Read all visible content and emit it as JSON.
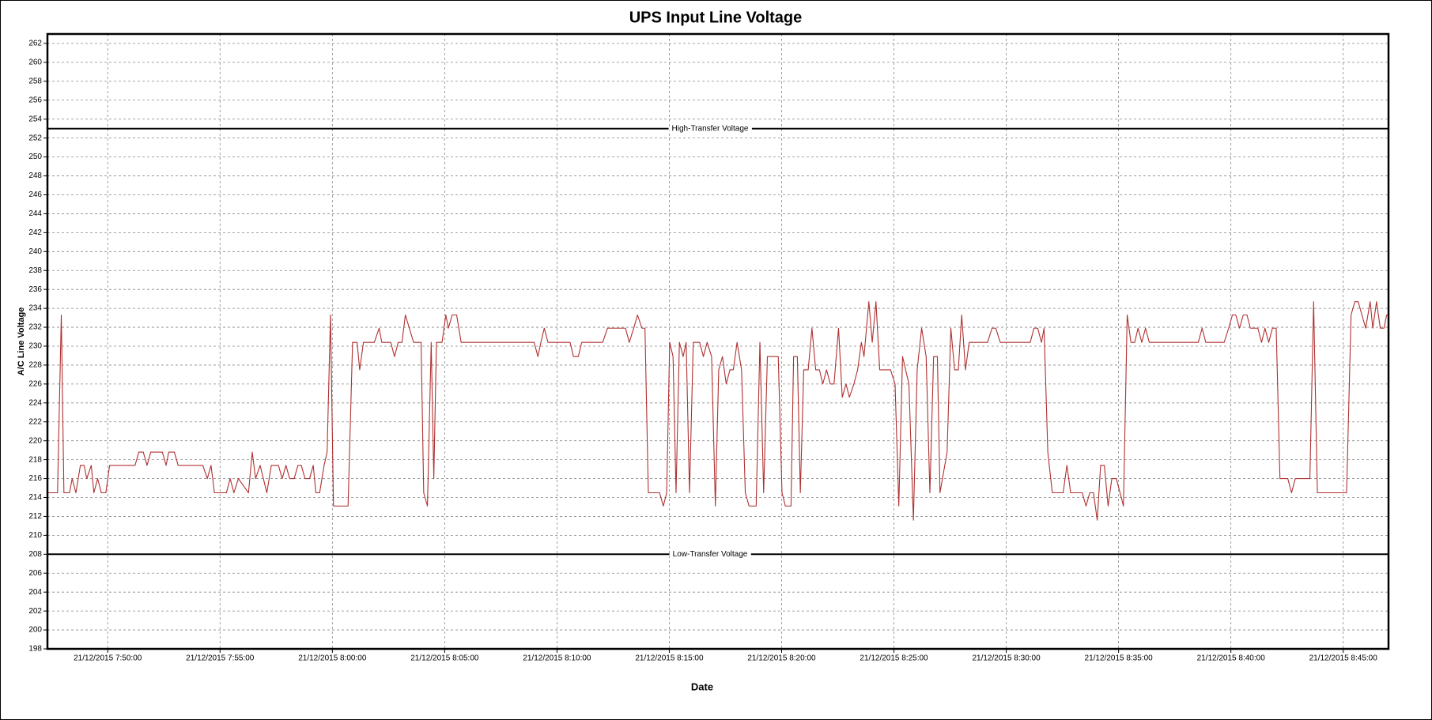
{
  "chart_data": {
    "type": "line",
    "title": "UPS Input Line Voltage",
    "xlabel": "Date",
    "ylabel": "A/C Line Voltage",
    "color": "#b03030",
    "grid": true,
    "ylim": [
      198,
      263
    ],
    "yticks": [
      198,
      200,
      202,
      204,
      206,
      208,
      210,
      212,
      214,
      216,
      218,
      220,
      222,
      224,
      226,
      228,
      230,
      232,
      234,
      236,
      238,
      240,
      242,
      244,
      246,
      248,
      250,
      252,
      254,
      256,
      258,
      260,
      262
    ],
    "xlim": [
      "21/12/2015 7:47:19",
      "21/12/2015 8:47:01"
    ],
    "xticks": [
      "21/12/2015 7:50:00",
      "21/12/2015 7:55:00",
      "21/12/2015 8:00:00",
      "21/12/2015 8:05:00",
      "21/12/2015 8:10:00",
      "21/12/2015 8:15:00",
      "21/12/2015 8:20:00",
      "21/12/2015 8:25:00",
      "21/12/2015 8:30:00",
      "21/12/2015 8:35:00",
      "21/12/2015 8:40:00",
      "21/12/2015 8:45:00"
    ],
    "reference_lines": [
      {
        "value": 253,
        "label": "High-Transfer Voltage"
      },
      {
        "value": 208,
        "label": "Low-Transfer Voltage"
      }
    ],
    "x": [
      "21/12/2015 7:47:19",
      "21/12/2015 7:47:46",
      "21/12/2015 7:47:56",
      "21/12/2015 7:48:03",
      "21/12/2015 7:48:18",
      "21/12/2015 7:48:25",
      "21/12/2015 7:48:35",
      "21/12/2015 7:48:47",
      "21/12/2015 7:48:57",
      "21/12/2015 7:49:04",
      "21/12/2015 7:49:16",
      "21/12/2015 7:49:23",
      "21/12/2015 7:49:33",
      "21/12/2015 7:49:43",
      "21/12/2015 7:49:55",
      "21/12/2015 7:50:05",
      "21/12/2015 7:51:13",
      "21/12/2015 7:51:23",
      "21/12/2015 7:51:35",
      "21/12/2015 7:51:45",
      "21/12/2015 7:51:55",
      "21/12/2015 7:52:26",
      "21/12/2015 7:52:36",
      "21/12/2015 7:52:43",
      "21/12/2015 7:52:58",
      "21/12/2015 7:53:08",
      "21/12/2015 7:54:14",
      "21/12/2015 7:54:26",
      "21/12/2015 7:54:36",
      "21/12/2015 7:54:45",
      "21/12/2015 7:55:17",
      "21/12/2015 7:55:27",
      "21/12/2015 7:55:37",
      "21/12/2015 7:55:49",
      "21/12/2015 7:56:16",
      "21/12/2015 7:56:26",
      "21/12/2015 7:56:35",
      "21/12/2015 7:56:47",
      "21/12/2015 7:57:05",
      "21/12/2015 7:57:17",
      "21/12/2015 7:57:36",
      "21/12/2015 7:57:46",
      "21/12/2015 7:57:56",
      "21/12/2015 7:58:06",
      "21/12/2015 7:58:18",
      "21/12/2015 7:58:28",
      "21/12/2015 7:58:37",
      "21/12/2015 7:58:47",
      "21/12/2015 7:58:59",
      "21/12/2015 7:59:09",
      "21/12/2015 7:59:16",
      "21/12/2015 7:59:26",
      "21/12/2015 7:59:38",
      "21/12/2015 7:59:46",
      "21/12/2015 7:59:55",
      "21/12/2015 8:00:03",
      "21/12/2015 8:00:42",
      "21/12/2015 8:00:54",
      "21/12/2015 8:01:06",
      "21/12/2015 8:01:13",
      "21/12/2015 8:01:23",
      "21/12/2015 8:01:52",
      "21/12/2015 8:02:05",
      "21/12/2015 8:02:12",
      "21/12/2015 8:02:36",
      "21/12/2015 8:02:46",
      "21/12/2015 8:02:56",
      "21/12/2015 8:03:06",
      "21/12/2015 8:03:15",
      "21/12/2015 8:03:37",
      "21/12/2015 8:03:57",
      "21/12/2015 8:04:04",
      "21/12/2015 8:04:14",
      "21/12/2015 8:04:24",
      "21/12/2015 8:04:31",
      "21/12/2015 8:04:38",
      "21/12/2015 8:04:53",
      "21/12/2015 8:05:03",
      "21/12/2015 8:05:10",
      "21/12/2015 8:05:20",
      "21/12/2015 8:05:32",
      "21/12/2015 8:05:44",
      "21/12/2015 8:08:59",
      "21/12/2015 8:09:09",
      "21/12/2015 8:09:17",
      "21/12/2015 8:09:26",
      "21/12/2015 8:09:36",
      "21/12/2015 8:10:35",
      "21/12/2015 8:10:44",
      "21/12/2015 8:10:57",
      "21/12/2015 8:11:06",
      "21/12/2015 8:12:02",
      "21/12/2015 8:12:15",
      "21/12/2015 8:13:03",
      "21/12/2015 8:13:13",
      "21/12/2015 8:13:25",
      "21/12/2015 8:13:35",
      "21/12/2015 8:13:47",
      "21/12/2015 8:13:55",
      "21/12/2015 8:14:04",
      "21/12/2015 8:14:34",
      "21/12/2015 8:14:44",
      "21/12/2015 8:14:53",
      "21/12/2015 8:15:01",
      "21/12/2015 8:15:10",
      "21/12/2015 8:15:18",
      "21/12/2015 8:15:27",
      "21/12/2015 8:15:37",
      "21/12/2015 8:15:45",
      "21/12/2015 8:15:54",
      "21/12/2015 8:16:04",
      "21/12/2015 8:16:21",
      "21/12/2015 8:16:31",
      "21/12/2015 8:16:41",
      "21/12/2015 8:16:53",
      "21/12/2015 8:17:03",
      "21/12/2015 8:17:12",
      "21/12/2015 8:17:22",
      "21/12/2015 8:17:32",
      "21/12/2015 8:17:42",
      "21/12/2015 8:17:51",
      "21/12/2015 8:18:01",
      "21/12/2015 8:18:13",
      "21/12/2015 8:18:23",
      "21/12/2015 8:18:33",
      "21/12/2015 8:18:52",
      "21/12/2015 8:19:02",
      "21/12/2015 8:19:12",
      "21/12/2015 8:19:22",
      "21/12/2015 8:19:51",
      "21/12/2015 8:20:01",
      "21/12/2015 8:20:10",
      "21/12/2015 8:20:25",
      "21/12/2015 8:20:32",
      "21/12/2015 8:20:42",
      "21/12/2015 8:20:50",
      "21/12/2015 8:20:59",
      "21/12/2015 8:21:11",
      "21/12/2015 8:21:21",
      "21/12/2015 8:21:31",
      "21/12/2015 8:21:41",
      "21/12/2015 8:21:50",
      "21/12/2015 8:22:00",
      "21/12/2015 8:22:10",
      "21/12/2015 8:22:20",
      "21/12/2015 8:22:32",
      "21/12/2015 8:22:42",
      "21/12/2015 8:22:52",
      "21/12/2015 8:23:01",
      "21/12/2015 8:23:13",
      "21/12/2015 8:23:23",
      "21/12/2015 8:23:33",
      "21/12/2015 8:23:40",
      "21/12/2015 8:23:53",
      "21/12/2015 8:24:02",
      "21/12/2015 8:24:12",
      "21/12/2015 8:24:22",
      "21/12/2015 8:24:51",
      "21/12/2015 8:25:03",
      "21/12/2015 8:25:13",
      "21/12/2015 8:25:23",
      "21/12/2015 8:25:40",
      "21/12/2015 8:25:52",
      "21/12/2015 8:26:02",
      "21/12/2015 8:26:14",
      "21/12/2015 8:26:26",
      "21/12/2015 8:26:36",
      "21/12/2015 8:26:46",
      "21/12/2015 8:26:56",
      "21/12/2015 8:27:03",
      "21/12/2015 8:27:22",
      "21/12/2015 8:27:32",
      "21/12/2015 8:27:42",
      "21/12/2015 8:27:52",
      "21/12/2015 8:28:01",
      "21/12/2015 8:28:11",
      "21/12/2015 8:28:21",
      "21/12/2015 8:29:10",
      "21/12/2015 8:29:22",
      "21/12/2015 8:29:32",
      "21/12/2015 8:29:44",
      "21/12/2015 8:31:04",
      "21/12/2015 8:31:14",
      "21/12/2015 8:31:24",
      "21/12/2015 8:31:34",
      "21/12/2015 8:31:41",
      "21/12/2015 8:31:51",
      "21/12/2015 8:32:03",
      "21/12/2015 8:32:32",
      "21/12/2015 8:32:42",
      "21/12/2015 8:32:52",
      "21/12/2015 8:33:23",
      "21/12/2015 8:33:33",
      "21/12/2015 8:33:43",
      "21/12/2015 8:33:53",
      "21/12/2015 8:34:03",
      "21/12/2015 8:34:12",
      "21/12/2015 8:34:22",
      "21/12/2015 8:34:32",
      "21/12/2015 8:34:42",
      "21/12/2015 8:34:54",
      "21/12/2015 8:35:04",
      "21/12/2015 8:35:13",
      "21/12/2015 8:35:23",
      "21/12/2015 8:35:33",
      "21/12/2015 8:35:43",
      "21/12/2015 8:35:52",
      "21/12/2015 8:36:02",
      "21/12/2015 8:36:12",
      "21/12/2015 8:36:22",
      "21/12/2015 8:38:33",
      "21/12/2015 8:38:43",
      "21/12/2015 8:38:53",
      "21/12/2015 8:39:42",
      "21/12/2015 8:39:54",
      "21/12/2015 8:40:04",
      "21/12/2015 8:40:13",
      "21/12/2015 8:40:23",
      "21/12/2015 8:40:33",
      "21/12/2015 8:40:43",
      "21/12/2015 8:40:52",
      "21/12/2015 8:41:12",
      "21/12/2015 8:41:22",
      "21/12/2015 8:41:31",
      "21/12/2015 8:41:41",
      "21/12/2015 8:41:51",
      "21/12/2015 8:42:01",
      "21/12/2015 8:42:11",
      "21/12/2015 8:42:32",
      "21/12/2015 8:42:42",
      "21/12/2015 8:42:52",
      "21/12/2015 8:43:31",
      "21/12/2015 8:43:41",
      "21/12/2015 8:43:51",
      "21/12/2015 8:45:09",
      "21/12/2015 8:45:21",
      "21/12/2015 8:45:31",
      "21/12/2015 8:45:40",
      "21/12/2015 8:45:50",
      "21/12/2015 8:46:00",
      "21/12/2015 8:46:12",
      "21/12/2015 8:46:19",
      "21/12/2015 8:46:29",
      "21/12/2015 8:46:39",
      "21/12/2015 8:46:49",
      "21/12/2015 8:46:56",
      "21/12/2015 8:47:01"
    ],
    "values": [
      214.5,
      214.5,
      233.3,
      214.5,
      214.5,
      216,
      214.5,
      217.4,
      217.4,
      216,
      217.4,
      214.5,
      216,
      214.5,
      214.5,
      217.4,
      217.4,
      218.8,
      218.8,
      217.4,
      218.8,
      218.8,
      217.4,
      218.8,
      218.8,
      217.4,
      217.4,
      216,
      217.4,
      214.5,
      214.5,
      216,
      214.5,
      216,
      214.5,
      218.8,
      216,
      217.4,
      214.5,
      217.4,
      217.4,
      216,
      217.4,
      216,
      216,
      217.4,
      217.4,
      216,
      216,
      217.4,
      214.5,
      214.5,
      217.4,
      218.8,
      233.3,
      213.1,
      213.1,
      230.4,
      230.4,
      227.5,
      230.4,
      230.4,
      231.9,
      230.4,
      230.4,
      228.9,
      230.4,
      230.4,
      233.3,
      230.4,
      230.4,
      214.5,
      213.1,
      230.4,
      216,
      230.4,
      230.4,
      233.3,
      231.9,
      233.3,
      233.3,
      230.4,
      230.4,
      228.9,
      230.4,
      231.9,
      230.4,
      230.4,
      228.9,
      228.9,
      230.4,
      230.4,
      231.9,
      231.9,
      230.4,
      231.9,
      233.3,
      231.9,
      231.9,
      214.5,
      214.5,
      213.1,
      214.5,
      230.4,
      228.9,
      214.5,
      230.4,
      228.9,
      230.4,
      214.5,
      230.4,
      230.4,
      228.9,
      230.4,
      228.9,
      213.1,
      227.5,
      228.9,
      226,
      227.5,
      227.5,
      230.4,
      227.5,
      214.5,
      213.1,
      213.1,
      230.4,
      214.5,
      228.9,
      228.9,
      214.5,
      213.1,
      213.1,
      228.9,
      228.9,
      214.5,
      227.5,
      227.5,
      231.9,
      227.5,
      227.5,
      226,
      227.5,
      226,
      226,
      231.9,
      224.6,
      226,
      224.6,
      226,
      227.5,
      230.4,
      228.9,
      234.7,
      230.4,
      234.7,
      227.5,
      227.5,
      226,
      213.1,
      228.9,
      226,
      211.6,
      227.5,
      231.9,
      228.9,
      214.5,
      228.9,
      228.9,
      214.5,
      218.8,
      231.9,
      227.5,
      227.5,
      233.3,
      227.5,
      230.4,
      230.4,
      231.9,
      231.9,
      230.4,
      230.4,
      231.9,
      231.9,
      230.4,
      231.9,
      218.8,
      214.5,
      214.5,
      217.4,
      214.5,
      214.5,
      213.1,
      214.5,
      214.5,
      211.6,
      217.4,
      217.4,
      213.1,
      216,
      216,
      214.5,
      213.1,
      233.3,
      230.4,
      230.4,
      231.9,
      230.4,
      231.9,
      230.4,
      230.4,
      231.9,
      230.4,
      230.4,
      231.9,
      233.3,
      233.3,
      231.9,
      233.3,
      233.3,
      231.9,
      231.9,
      230.4,
      231.9,
      230.4,
      231.9,
      231.9,
      216,
      216,
      214.5,
      216,
      216,
      234.7,
      214.5,
      214.5,
      233.3,
      234.7,
      234.7,
      233.3,
      231.9,
      234.7,
      231.9,
      234.7,
      231.9,
      231.9,
      233.3,
      233.3
    ]
  }
}
